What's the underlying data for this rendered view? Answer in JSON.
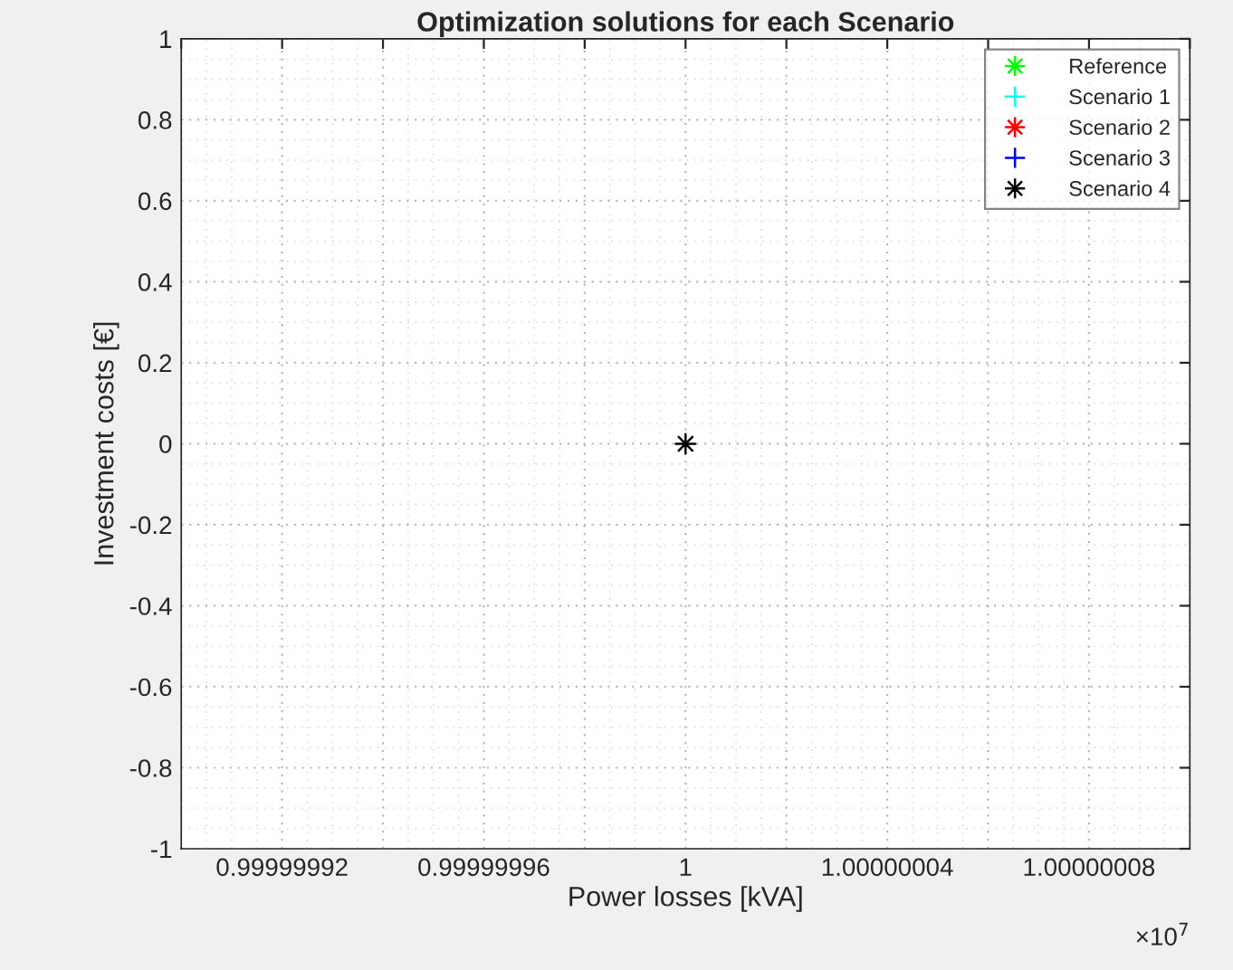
{
  "chart_data": {
    "type": "scatter",
    "title": "Optimization solutions for each Scenario",
    "xlabel": "Power losses [kVA]",
    "ylabel": "Investment costs [€]",
    "xlim": [
      0.9999999,
      1.0000001
    ],
    "xticks": [
      {
        "value": 0.9999999,
        "label": null
      },
      0.99999992,
      {
        "value": 0.99999994,
        "label": null
      },
      0.99999996,
      {
        "value": 0.99999998,
        "label": null
      },
      1,
      {
        "value": 1.00000002,
        "label": null
      },
      1.00000004,
      {
        "value": 1.00000006,
        "label": null
      },
      1.00000008,
      {
        "value": 1.0000001,
        "label": null
      }
    ],
    "ylim": [
      -1,
      1
    ],
    "yticks": [
      -1,
      -0.8,
      -0.6,
      -0.4,
      -0.2,
      0,
      0.2,
      0.4,
      0.6,
      0.8,
      1
    ],
    "grid": true,
    "legend": "top right",
    "annotations": [
      "×10$^{7}$"
    ],
    "series": [
      {
        "name": "Reference",
        "color": "#00ff00",
        "marker": "star"
      },
      {
        "name": "Scenario 1",
        "color": "#00ffff",
        "marker": "cross"
      },
      {
        "name": "Scenario 2",
        "color": "#ff0000",
        "marker": "star"
      },
      {
        "name": "Scenario 3",
        "color": "#0000ff",
        "marker": "cross"
      },
      {
        "name": "Scenario 4",
        "color": "#000000",
        "marker": "star",
        "x": [
          1
        ],
        "values": [
          0
        ]
      }
    ]
  }
}
